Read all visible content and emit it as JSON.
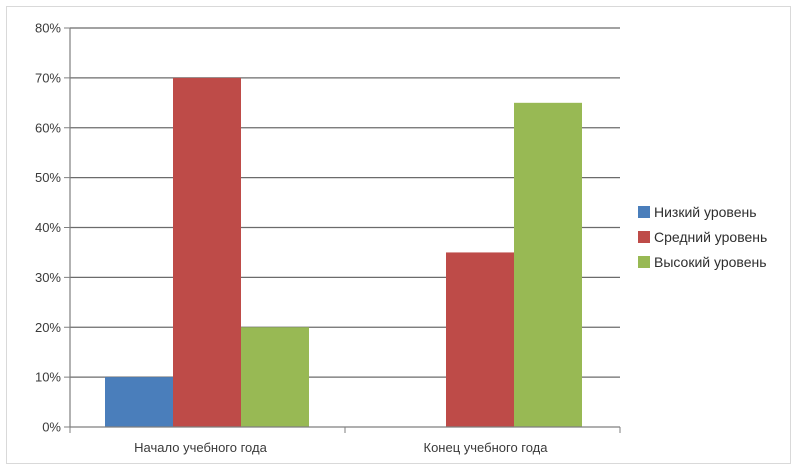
{
  "chart_data": {
    "type": "bar",
    "title": "",
    "xlabel": "",
    "ylabel": "",
    "categories": [
      "Начало учебного года",
      "Конец учебного года"
    ],
    "series": [
      {
        "name": "Низкий уровень",
        "values": [
          10,
          0
        ],
        "color": "#4a7ebb"
      },
      {
        "name": "Средний уровень",
        "values": [
          70,
          35
        ],
        "color": "#be4b48"
      },
      {
        "name": "Высокий уровень",
        "values": [
          20,
          65
        ],
        "color": "#98b954"
      }
    ],
    "ylim": [
      0,
      80
    ],
    "yticks": [
      0,
      10,
      20,
      30,
      40,
      50,
      60,
      70,
      80
    ],
    "ytick_labels": [
      "0%",
      "10%",
      "20%",
      "30%",
      "40%",
      "50%",
      "60%",
      "70%",
      "80%"
    ],
    "grid": true,
    "legend": "right"
  }
}
